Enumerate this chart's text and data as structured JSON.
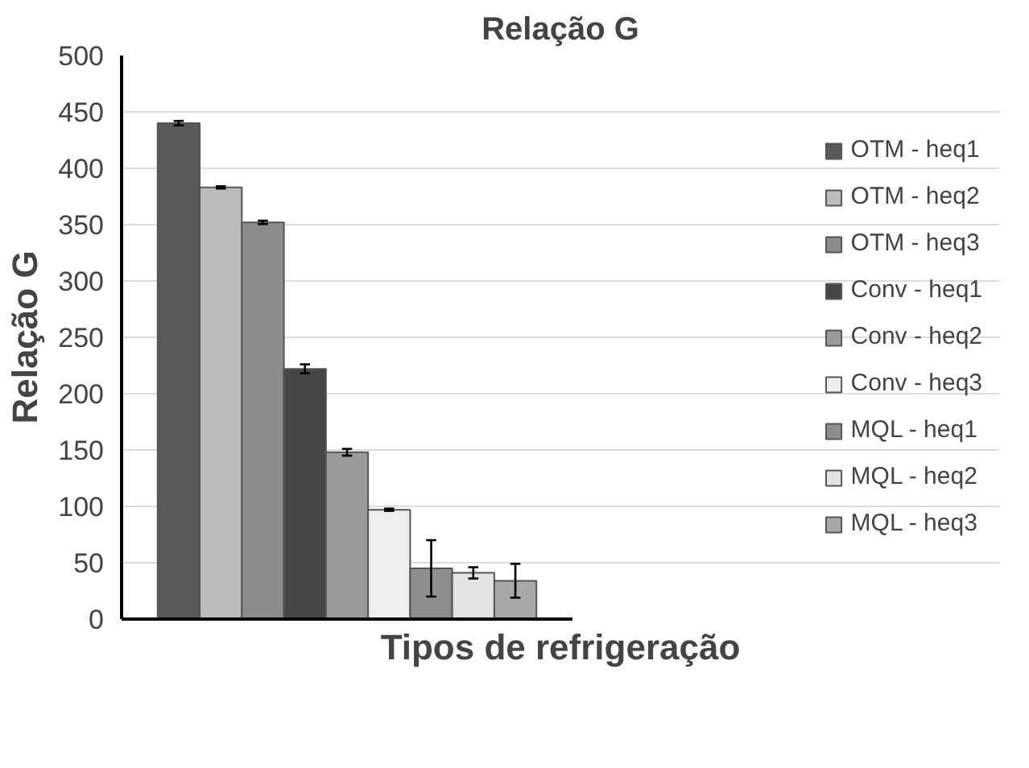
{
  "chart_data": {
    "type": "bar",
    "title": "Relação G",
    "xlabel": "Tipos de refrigeração",
    "ylabel": "Relação G",
    "categories": [
      null
    ],
    "series": [
      {
        "name": "OTM - heq1",
        "color": "#5a5a5a",
        "values": [
          440
        ],
        "errors": [
          2
        ]
      },
      {
        "name": "OTM - heq2",
        "color": "#bcbcbc",
        "values": [
          383
        ],
        "errors": [
          1
        ]
      },
      {
        "name": "OTM - heq3",
        "color": "#8c8c8c",
        "values": [
          352
        ],
        "errors": [
          1.5
        ]
      },
      {
        "name": "Conv - heq1",
        "color": "#464646",
        "values": [
          222
        ],
        "errors": [
          4
        ]
      },
      {
        "name": "Conv - heq2",
        "color": "#9a9a9a",
        "values": [
          148
        ],
        "errors": [
          3
        ]
      },
      {
        "name": "Conv - heq3",
        "color": "#eeeeee",
        "values": [
          97
        ],
        "errors": [
          1
        ]
      },
      {
        "name": "MQL - heq1",
        "color": "#8e8e8e",
        "values": [
          45
        ],
        "errors": [
          25
        ]
      },
      {
        "name": "MQL - heq2",
        "color": "#e4e4e4",
        "values": [
          41
        ],
        "errors": [
          5
        ]
      },
      {
        "name": "MQL - heq3",
        "color": "#a8a8a8",
        "values": [
          34
        ],
        "errors": [
          15
        ]
      }
    ],
    "ylim": [
      0,
      500
    ],
    "yticks": [
      0,
      50,
      100,
      150,
      200,
      250,
      300,
      350,
      400,
      450,
      500
    ],
    "grid": "y",
    "legend": "right"
  }
}
